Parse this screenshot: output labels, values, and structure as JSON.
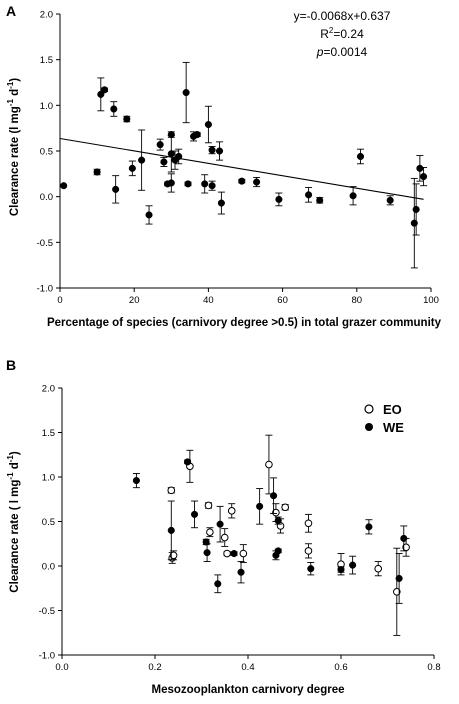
{
  "chart_data": [
    {
      "type": "scatter",
      "panel_label": "A",
      "xlabel": "Percentage of species (carnivory degree >0.5) in total grazer community",
      "ylabel": "Clearance rate (l mg-1 d-1)",
      "ylabel_parts": {
        "main": "Clearance rate (l mg",
        "sup1": "-1",
        "mid": " d",
        "sup2": "-1",
        "end": ")"
      },
      "xlim": [
        0,
        100
      ],
      "ylim": [
        -1.0,
        2.0
      ],
      "xticks": [
        "0",
        "20",
        "40",
        "60",
        "80",
        "100"
      ],
      "yticks": [
        "-1.0",
        "-0.5",
        "0.0",
        "0.5",
        "1.0",
        "1.5",
        "2.0"
      ],
      "regression": {
        "slope": -0.0068,
        "intercept": 0.637,
        "x_range": [
          0,
          98
        ]
      },
      "annotation": {
        "line1": "y=-0.0068x+0.637",
        "r2_prefix": "R",
        "r2_sup": "2",
        "r2_suffix": "=0.24",
        "p_label": "p",
        "p_suffix": "=0.0014"
      },
      "series": [
        {
          "points": [
            {
              "x": 1,
              "y": 0.12
            },
            {
              "x": 10,
              "y": 0.27,
              "err": 0.03
            },
            {
              "x": 11,
              "y": 1.12,
              "err": 0.18
            },
            {
              "x": 12,
              "y": 1.17,
              "err": 0.02
            },
            {
              "x": 14.5,
              "y": 0.96,
              "err": 0.08
            },
            {
              "x": 15,
              "y": 0.08,
              "err": 0.15
            },
            {
              "x": 18,
              "y": 0.85,
              "err": 0.03
            },
            {
              "x": 19.5,
              "y": 0.31,
              "err": 0.08
            },
            {
              "x": 22,
              "y": 0.4,
              "err": 0.33
            },
            {
              "x": 24,
              "y": -0.2,
              "err": 0.1
            },
            {
              "x": 27,
              "y": 0.57,
              "err": 0.06
            },
            {
              "x": 28,
              "y": 0.38,
              "err": 0.05
            },
            {
              "x": 29,
              "y": 0.14,
              "err": 0.02
            },
            {
              "x": 30,
              "y": 0.47,
              "err": 0.2
            },
            {
              "x": 30,
              "y": 0.68,
              "err": 0.03
            },
            {
              "x": 30,
              "y": 0.15,
              "err": 0.1
            },
            {
              "x": 31,
              "y": 0.4,
              "err": 0.1
            },
            {
              "x": 32,
              "y": 0.44,
              "err": 0.08
            },
            {
              "x": 34,
              "y": 1.14,
              "err": 0.33
            },
            {
              "x": 34.5,
              "y": 0.14,
              "err": 0.02
            },
            {
              "x": 36,
              "y": 0.66,
              "err": 0.05
            },
            {
              "x": 37,
              "y": 0.68,
              "err": 0.02
            },
            {
              "x": 39,
              "y": 0.14,
              "err": 0.1
            },
            {
              "x": 40,
              "y": 0.79,
              "err": 0.2
            },
            {
              "x": 41,
              "y": 0.12,
              "err": 0.05
            },
            {
              "x": 41,
              "y": 0.51,
              "err": 0.04
            },
            {
              "x": 43,
              "y": 0.5,
              "err": 0.1
            },
            {
              "x": 43.5,
              "y": -0.07,
              "err": 0.12
            },
            {
              "x": 49,
              "y": 0.17,
              "err": 0.02
            },
            {
              "x": 53,
              "y": 0.16,
              "err": 0.05
            },
            {
              "x": 59,
              "y": -0.03,
              "err": 0.07
            },
            {
              "x": 67,
              "y": 0.02,
              "err": 0.08
            },
            {
              "x": 70,
              "y": -0.04,
              "err": 0.03
            },
            {
              "x": 79,
              "y": 0.01,
              "err": 0.1
            },
            {
              "x": 81,
              "y": 0.44,
              "err": 0.08
            },
            {
              "x": 89,
              "y": -0.04,
              "err": 0.05
            },
            {
              "x": 95.5,
              "y": -0.29,
              "err": 0.49
            },
            {
              "x": 96,
              "y": -0.14,
              "err": 0.28
            },
            {
              "x": 97,
              "y": 0.31,
              "err": 0.14
            },
            {
              "x": 98,
              "y": 0.22,
              "err": 0.1
            }
          ]
        }
      ]
    },
    {
      "type": "scatter",
      "panel_label": "B",
      "xlabel": "Mesozooplankton carnivory degree",
      "ylabel": "Clearance rate (l mg-1 d-1)",
      "ylabel_parts": {
        "main": "Clearance rate ( l mg",
        "sup1": "-1",
        "mid": " d",
        "sup2": "-1",
        "end": ")"
      },
      "xlim": [
        0.0,
        0.8
      ],
      "ylim": [
        -1.0,
        2.0
      ],
      "xticks": [
        "0.0",
        "0.2",
        "0.4",
        "0.6",
        "0.8"
      ],
      "yticks": [
        "-1.0",
        "-0.5",
        "0.0",
        "0.5",
        "1.0",
        "1.5",
        "2.0"
      ],
      "legend": "top-right",
      "series": [
        {
          "name": "EO",
          "marker": "open-circle",
          "points": [
            {
              "x": 0.235,
              "y": 0.85,
              "err": 0.03
            },
            {
              "x": 0.237,
              "y": 0.09,
              "err": 0.06
            },
            {
              "x": 0.24,
              "y": 0.12,
              "err": 0.05
            },
            {
              "x": 0.275,
              "y": 1.12,
              "err": 0.18
            },
            {
              "x": 0.315,
              "y": 0.68,
              "err": 0.03
            },
            {
              "x": 0.318,
              "y": 0.38,
              "err": 0.05
            },
            {
              "x": 0.35,
              "y": 0.32,
              "err": 0.1
            },
            {
              "x": 0.355,
              "y": 0.14,
              "err": 0.02
            },
            {
              "x": 0.365,
              "y": 0.62,
              "err": 0.08
            },
            {
              "x": 0.39,
              "y": 0.14,
              "err": 0.1
            },
            {
              "x": 0.445,
              "y": 1.14,
              "err": 0.33
            },
            {
              "x": 0.46,
              "y": 0.6,
              "err": 0.1
            },
            {
              "x": 0.47,
              "y": 0.45,
              "err": 0.08
            },
            {
              "x": 0.48,
              "y": 0.66,
              "err": 0.03
            },
            {
              "x": 0.53,
              "y": 0.48,
              "err": 0.1
            },
            {
              "x": 0.53,
              "y": 0.17,
              "err": 0.08
            },
            {
              "x": 0.6,
              "y": 0.02,
              "err": 0.12
            },
            {
              "x": 0.68,
              "y": -0.03,
              "err": 0.08
            },
            {
              "x": 0.72,
              "y": -0.29,
              "err": 0.49
            },
            {
              "x": 0.74,
              "y": 0.21,
              "err": 0.1
            }
          ]
        },
        {
          "name": "WE",
          "marker": "filled-circle",
          "points": [
            {
              "x": 0.16,
              "y": 0.96,
              "err": 0.08
            },
            {
              "x": 0.235,
              "y": 0.4,
              "err": 0.33
            },
            {
              "x": 0.27,
              "y": 1.17,
              "err": 0.02
            },
            {
              "x": 0.285,
              "y": 0.58,
              "err": 0.15
            },
            {
              "x": 0.31,
              "y": 0.27,
              "err": 0.03
            },
            {
              "x": 0.312,
              "y": 0.15,
              "err": 0.1
            },
            {
              "x": 0.335,
              "y": -0.2,
              "err": 0.1
            },
            {
              "x": 0.34,
              "y": 0.47,
              "err": 0.2
            },
            {
              "x": 0.37,
              "y": 0.14,
              "err": 0.02
            },
            {
              "x": 0.385,
              "y": -0.07,
              "err": 0.12
            },
            {
              "x": 0.425,
              "y": 0.67,
              "err": 0.2
            },
            {
              "x": 0.455,
              "y": 0.79,
              "err": 0.2
            },
            {
              "x": 0.46,
              "y": 0.12,
              "err": 0.05
            },
            {
              "x": 0.465,
              "y": 0.17,
              "err": 0.02
            },
            {
              "x": 0.465,
              "y": 0.51,
              "err": 0.04
            },
            {
              "x": 0.535,
              "y": -0.03,
              "err": 0.07
            },
            {
              "x": 0.6,
              "y": -0.04,
              "err": 0.03
            },
            {
              "x": 0.625,
              "y": 0.01,
              "err": 0.1
            },
            {
              "x": 0.66,
              "y": 0.44,
              "err": 0.08
            },
            {
              "x": 0.725,
              "y": -0.14,
              "err": 0.28
            },
            {
              "x": 0.735,
              "y": 0.31,
              "err": 0.14
            }
          ]
        }
      ]
    }
  ]
}
